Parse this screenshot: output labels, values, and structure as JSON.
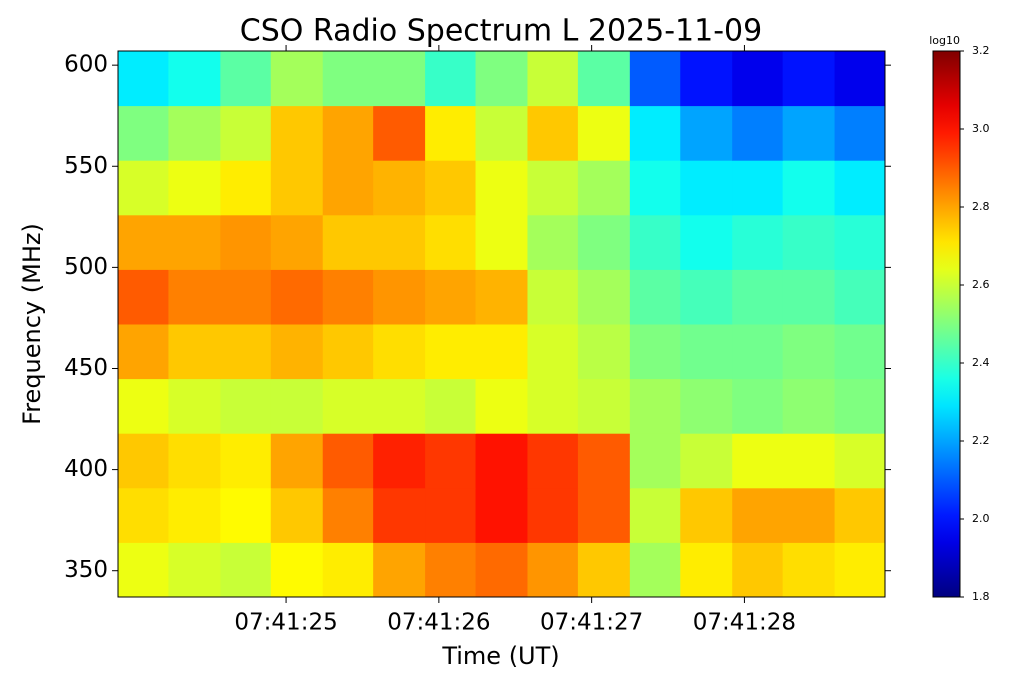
{
  "chart_data": {
    "type": "heatmap",
    "title": "CSO Radio Spectrum L 2025-11-09",
    "xlabel": "Time (UT)",
    "ylabel": "Frequency (MHz)",
    "xlim": [
      23.9,
      28.92
    ],
    "xticks": [
      {
        "value": 25,
        "label": "07:41:25"
      },
      {
        "value": 26,
        "label": "07:41:26"
      },
      {
        "value": 27,
        "label": "07:41:27"
      },
      {
        "value": 28,
        "label": "07:41:28"
      }
    ],
    "ylim": [
      337,
      607
    ],
    "yticks": [
      350,
      400,
      450,
      500,
      550,
      600
    ],
    "xbins": [
      23.9,
      24.23,
      24.57,
      24.9,
      25.24,
      25.57,
      25.91,
      26.24,
      26.58,
      26.91,
      27.25,
      27.58,
      27.92,
      28.25,
      28.59,
      28.92
    ],
    "ybins": [
      337,
      364,
      391,
      418,
      445,
      472,
      499,
      526,
      553,
      580,
      607
    ],
    "z": [
      [
        2.65,
        2.62,
        2.6,
        2.68,
        2.7,
        2.8,
        2.85,
        2.88,
        2.82,
        2.75,
        2.55,
        2.7,
        2.75,
        2.72,
        2.7
      ],
      [
        2.72,
        2.7,
        2.68,
        2.75,
        2.85,
        2.95,
        2.95,
        3.0,
        2.95,
        2.9,
        2.6,
        2.75,
        2.8,
        2.8,
        2.75
      ],
      [
        2.75,
        2.72,
        2.7,
        2.8,
        2.9,
        2.98,
        2.95,
        3.0,
        2.95,
        2.9,
        2.55,
        2.6,
        2.65,
        2.65,
        2.62
      ],
      [
        2.65,
        2.62,
        2.6,
        2.6,
        2.62,
        2.62,
        2.6,
        2.65,
        2.62,
        2.6,
        2.55,
        2.52,
        2.5,
        2.52,
        2.5
      ],
      [
        2.8,
        2.75,
        2.75,
        2.78,
        2.75,
        2.72,
        2.7,
        2.7,
        2.62,
        2.58,
        2.5,
        2.48,
        2.48,
        2.5,
        2.48
      ],
      [
        2.9,
        2.85,
        2.85,
        2.88,
        2.85,
        2.82,
        2.8,
        2.78,
        2.6,
        2.55,
        2.45,
        2.42,
        2.45,
        2.45,
        2.42
      ],
      [
        2.8,
        2.8,
        2.82,
        2.8,
        2.75,
        2.75,
        2.72,
        2.65,
        2.55,
        2.5,
        2.4,
        2.35,
        2.38,
        2.4,
        2.38
      ],
      [
        2.62,
        2.65,
        2.7,
        2.75,
        2.8,
        2.78,
        2.75,
        2.65,
        2.6,
        2.55,
        2.35,
        2.3,
        2.3,
        2.35,
        2.3
      ],
      [
        2.5,
        2.55,
        2.6,
        2.75,
        2.8,
        2.9,
        2.7,
        2.6,
        2.75,
        2.65,
        2.3,
        2.2,
        2.15,
        2.2,
        2.15
      ],
      [
        2.3,
        2.35,
        2.45,
        2.55,
        2.5,
        2.5,
        2.4,
        2.5,
        2.6,
        2.45,
        2.1,
        2.0,
        1.95,
        2.0,
        1.95
      ]
    ],
    "colormap": "jet",
    "colorbar_label": "log10",
    "clim": [
      1.8,
      3.2
    ],
    "cticks": [
      1.8,
      {
        "value": 2,
        "label": "2.0"
      },
      2.2,
      2.4,
      2.6,
      2.8,
      {
        "value": 3,
        "label": "3.0"
      },
      3.2
    ]
  }
}
